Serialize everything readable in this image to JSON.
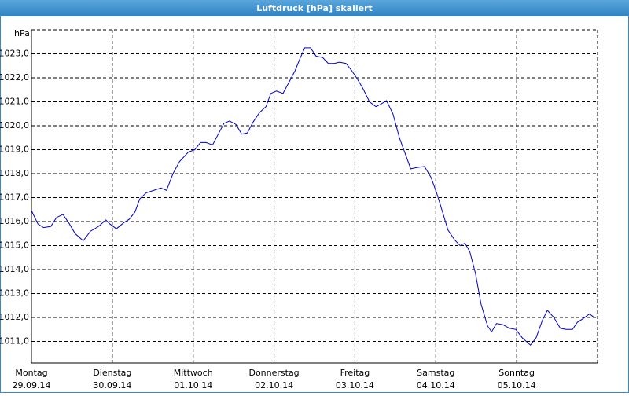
{
  "chart_data": {
    "type": "line",
    "title": "Luftdruck [hPa] skaliert",
    "y_label": "hPa",
    "xlim": [
      0,
      7
    ],
    "ylim": [
      1010.1,
      1024.0
    ],
    "grid": true,
    "xticks": [
      {
        "value": 0,
        "label": [
          "Montag",
          "29.09.14"
        ]
      },
      {
        "value": 1,
        "label": [
          "Dienstag",
          "30.09.14"
        ]
      },
      {
        "value": 2,
        "label": [
          "Mittwoch",
          "01.10.14"
        ]
      },
      {
        "value": 3,
        "label": [
          "Donnerstag",
          "02.10.14"
        ]
      },
      {
        "value": 4,
        "label": [
          "Freitag",
          "03.10.14"
        ]
      },
      {
        "value": 5,
        "label": [
          "Samstag",
          "04.10.14"
        ]
      },
      {
        "value": 6,
        "label": [
          "Sonntag",
          "05.10.14"
        ]
      }
    ],
    "yticks": [
      {
        "value": 1011,
        "label": "1011,0"
      },
      {
        "value": 1012,
        "label": "1012,0"
      },
      {
        "value": 1013,
        "label": "1013,0"
      },
      {
        "value": 1014,
        "label": "1014,0"
      },
      {
        "value": 1015,
        "label": "1015,0"
      },
      {
        "value": 1016,
        "label": "1016,0"
      },
      {
        "value": 1017,
        "label": "1017,0"
      },
      {
        "value": 1018,
        "label": "1018,0"
      },
      {
        "value": 1019,
        "label": "1019,0"
      },
      {
        "value": 1020,
        "label": "1020,0"
      },
      {
        "value": 1021,
        "label": "1021,0"
      },
      {
        "value": 1022,
        "label": "1022,0"
      },
      {
        "value": 1023,
        "label": "1023,0"
      }
    ],
    "x": [
      0,
      0.08,
      0.15,
      0.24,
      0.31,
      0.39,
      0.47,
      0.54,
      0.64,
      0.73,
      0.83,
      0.92,
      0.97,
      1.05,
      1.14,
      1.21,
      1.28,
      1.34,
      1.42,
      1.51,
      1.6,
      1.67,
      1.75,
      1.83,
      1.94,
      2.02,
      2.09,
      2.16,
      2.24,
      2.31,
      2.38,
      2.45,
      2.53,
      2.6,
      2.67,
      2.74,
      2.82,
      2.9,
      2.96,
      3.03,
      3.11,
      3.19,
      3.26,
      3.32,
      3.38,
      3.45,
      3.52,
      3.6,
      3.67,
      3.74,
      3.81,
      3.89,
      3.96,
      4.03,
      4.1,
      4.18,
      4.26,
      4.32,
      4.39,
      4.47,
      4.55,
      4.62,
      4.69,
      4.76,
      4.86,
      4.94,
      5.01,
      5.07,
      5.15,
      5.23,
      5.3,
      5.36,
      5.42,
      5.49,
      5.56,
      5.64,
      5.69,
      5.75,
      5.83,
      5.91,
      5.99,
      6.07,
      6.17,
      6.24,
      6.32,
      6.38,
      6.46,
      6.54,
      6.61,
      6.69,
      6.75,
      6.82,
      6.9,
      6.96
    ],
    "series": [
      {
        "color": "#0000c8",
        "values": [
          1016.46,
          1015.9,
          1015.75,
          1015.8,
          1016.17,
          1016.3,
          1015.9,
          1015.5,
          1015.2,
          1015.6,
          1015.8,
          1016.07,
          1015.9,
          1015.7,
          1015.95,
          1016.1,
          1016.4,
          1016.95,
          1017.2,
          1017.3,
          1017.4,
          1017.3,
          1018.0,
          1018.5,
          1018.9,
          1019.0,
          1019.3,
          1019.3,
          1019.2,
          1019.65,
          1020.1,
          1020.2,
          1020.05,
          1019.65,
          1019.7,
          1020.15,
          1020.55,
          1020.8,
          1021.35,
          1021.45,
          1021.35,
          1021.85,
          1022.3,
          1022.8,
          1023.25,
          1023.25,
          1022.9,
          1022.85,
          1022.6,
          1022.6,
          1022.65,
          1022.6,
          1022.3,
          1021.95,
          1021.55,
          1021.0,
          1020.8,
          1020.9,
          1021.05,
          1020.5,
          1019.5,
          1018.85,
          1018.2,
          1018.25,
          1018.3,
          1017.85,
          1017.2,
          1016.55,
          1015.65,
          1015.25,
          1015.0,
          1015.1,
          1014.75,
          1013.85,
          1012.55,
          1011.65,
          1011.4,
          1011.75,
          1011.7,
          1011.55,
          1011.5,
          1011.15,
          1010.85,
          1011.15,
          1011.9,
          1012.3,
          1012.0,
          1011.55,
          1011.5,
          1011.5,
          1011.8,
          1011.95,
          1012.15,
          1012.0
        ]
      }
    ]
  }
}
